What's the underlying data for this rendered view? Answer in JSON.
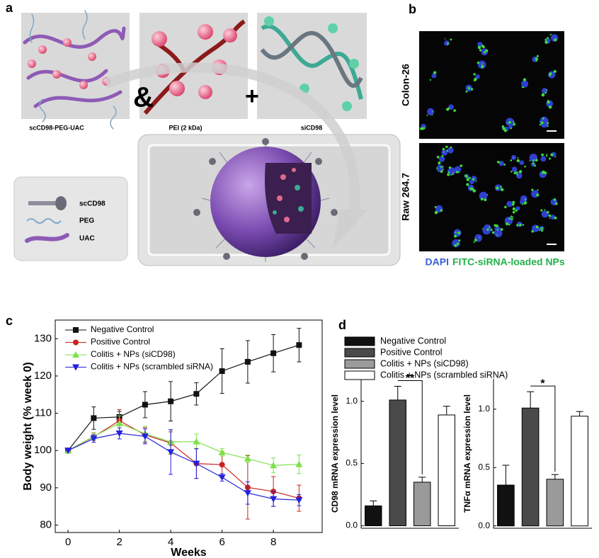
{
  "panel_a": {
    "label": "a",
    "components": [
      "scCD98-PEG-UAC",
      "PEI (2 kDa)",
      "siCD98"
    ],
    "symbols": [
      "&",
      "+"
    ],
    "legend": [
      "scCD98",
      "PEG",
      "UAC"
    ]
  },
  "panel_b": {
    "label": "b",
    "rows": [
      "Colon-26",
      "Raw 264.7"
    ],
    "caption": [
      "DAPI",
      "FITC-siRNA-loaded NPs"
    ]
  },
  "chart_data": [
    {
      "type": "line",
      "panel": "c",
      "xlabel": "Weeks",
      "ylabel": "Body weight (% week 0)",
      "x": [
        0,
        1,
        2,
        3,
        4,
        5,
        6,
        7,
        8,
        9
      ],
      "xlim": [
        -0.5,
        9.9
      ],
      "xticks": [
        0,
        2,
        4,
        6,
        8
      ],
      "ylim": [
        78,
        135
      ],
      "yticks": [
        80,
        90,
        100,
        110,
        120,
        130
      ],
      "legend": "upper left",
      "series": [
        {
          "name": "Negative Control",
          "color": "#111111",
          "marker": "square",
          "values": [
            100,
            108.7,
            109,
            112.3,
            113.2,
            115.2,
            121.3,
            123.8,
            126.1,
            128.3
          ],
          "errors": [
            0,
            3,
            1.5,
            3.5,
            5.3,
            3,
            6,
            5.7,
            5,
            4.5
          ]
        },
        {
          "name": "Positive Control",
          "color": "#cc2222",
          "marker": "circle",
          "values": [
            100,
            103.7,
            108,
            104.2,
            102,
            96.5,
            96.2,
            90.1,
            89,
            87.2
          ],
          "errors": [
            0,
            1,
            3,
            2,
            3,
            4,
            3.5,
            8.5,
            4,
            3.5
          ]
        },
        {
          "name": "Colitis + NPs (siCD98)",
          "color": "#7ee04a",
          "marker": "triangle-up",
          "values": [
            100,
            103.8,
            107.3,
            104.5,
            102.3,
            102.4,
            99.5,
            97.8,
            96,
            96.3
          ],
          "errors": [
            0,
            1,
            2,
            2,
            3.2,
            2,
            1,
            1,
            2,
            2.5
          ]
        },
        {
          "name": "Colitis + NPs (scrambled siRNA)",
          "color": "#2222dd",
          "marker": "triangle-down",
          "values": [
            100,
            103.2,
            104.6,
            103.8,
            99.6,
            96.5,
            92.8,
            88.6,
            87,
            86.7
          ],
          "errors": [
            0,
            1,
            1.5,
            2,
            6,
            4,
            1,
            3,
            2,
            1.5
          ]
        }
      ]
    },
    {
      "type": "bar",
      "panel": "d",
      "ylabel": "CD98 mRNA expression level",
      "categories": [
        null
      ],
      "ylim": [
        -0.02,
        1.18
      ],
      "yticks": [
        {
          "value": 0,
          "label": "0.0"
        },
        0.5,
        {
          "value": 1,
          "label": "1.0"
        }
      ],
      "annotation": "**",
      "series": [
        {
          "name": "Negative Control",
          "color": "#111111",
          "values": [
            0.16
          ],
          "errors": [
            0.04
          ]
        },
        {
          "name": "Positive Control",
          "color": "#4a4a4a",
          "values": [
            1.01
          ],
          "errors": [
            0.11
          ]
        },
        {
          "name": "Colitis + NPs (siCD98)",
          "color": "#9a9a9a",
          "values": [
            0.35
          ],
          "errors": [
            0.04
          ]
        },
        {
          "name": "Colitis + NPs (scrambled siRNA)",
          "color": "#ffffff",
          "values": [
            0.89
          ],
          "errors": [
            0.07
          ]
        }
      ]
    },
    {
      "type": "bar",
      "ylabel": "TNFα mRNA expression level",
      "categories": [
        null
      ],
      "ylim": [
        -0.02,
        1.26
      ],
      "yticks": [
        {
          "value": 0,
          "label": "0.0"
        },
        0.5,
        {
          "value": 1,
          "label": "1.0"
        }
      ],
      "annotation": "*",
      "series": [
        {
          "color": "#111111",
          "values": [
            0.35
          ],
          "errors": [
            0.17
          ]
        },
        {
          "color": "#4a4a4a",
          "values": [
            1.01
          ],
          "errors": [
            0.14
          ]
        },
        {
          "color": "#9a9a9a",
          "values": [
            0.4
          ],
          "errors": [
            0.04
          ]
        },
        {
          "color": "#ffffff",
          "values": [
            0.94
          ],
          "errors": [
            0.04
          ]
        }
      ]
    }
  ]
}
